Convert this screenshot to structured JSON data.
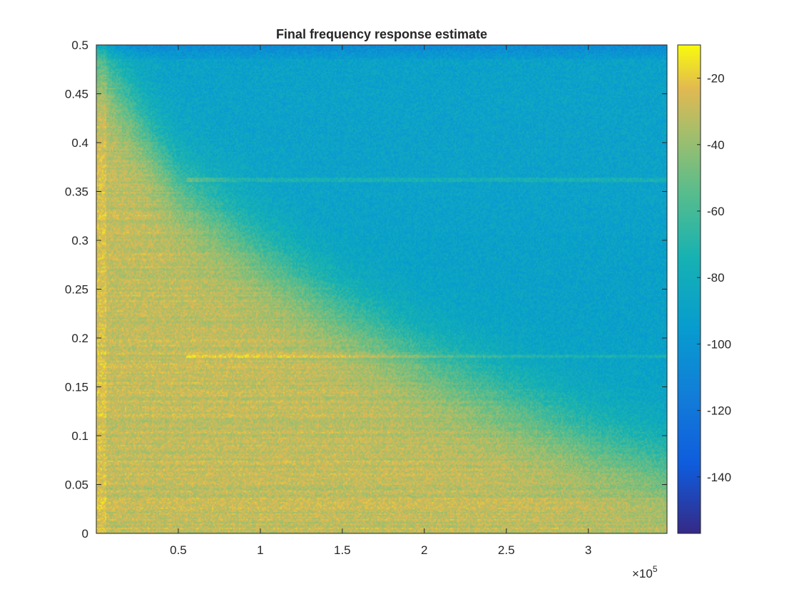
{
  "chart_data": {
    "type": "heatmap",
    "title": "Final frequency response estimate",
    "xlabel": "",
    "ylabel": "",
    "x_exponent_label": "×10",
    "x_exponent_power": "5",
    "xlim": [
      0,
      3.48
    ],
    "ylim": [
      0,
      0.5
    ],
    "xticks": [
      0.5,
      1,
      1.5,
      2,
      2.5,
      3
    ],
    "xtick_labels": [
      "0.5",
      "1",
      "1.5",
      "2",
      "2.5",
      "3"
    ],
    "yticks": [
      0,
      0.05,
      0.1,
      0.15,
      0.2,
      0.25,
      0.3,
      0.35,
      0.4,
      0.45,
      0.5
    ],
    "ytick_labels": [
      "0",
      "0.05",
      "0.1",
      "0.15",
      "0.2",
      "0.25",
      "0.3",
      "0.35",
      "0.4",
      "0.45",
      "0.5"
    ],
    "colormap": "parula",
    "clim": [
      -157,
      -10
    ],
    "colorbar_ticks": [
      -20,
      -40,
      -60,
      -80,
      -100,
      -120,
      -140
    ],
    "colorbar_tick_labels": [
      "-20",
      "-40",
      "-60",
      "-80",
      "-100",
      "-120",
      "-140"
    ],
    "grid": false,
    "description_trend": {
      "low_freq_level_dB": -30,
      "high_freq_floor_dB": -90,
      "cutoff_points": [
        {
          "x": 0.05,
          "y": 0.48
        },
        {
          "x": 0.5,
          "y": 0.36
        },
        {
          "x": 1.0,
          "y": 0.29
        },
        {
          "x": 1.5,
          "y": 0.23
        },
        {
          "x": 2.0,
          "y": 0.18
        },
        {
          "x": 2.5,
          "y": 0.14
        },
        {
          "x": 3.0,
          "y": 0.1
        },
        {
          "x": 3.48,
          "y": 0.07
        }
      ],
      "horizontal_lines_y": [
        0.362,
        0.181
      ]
    }
  }
}
